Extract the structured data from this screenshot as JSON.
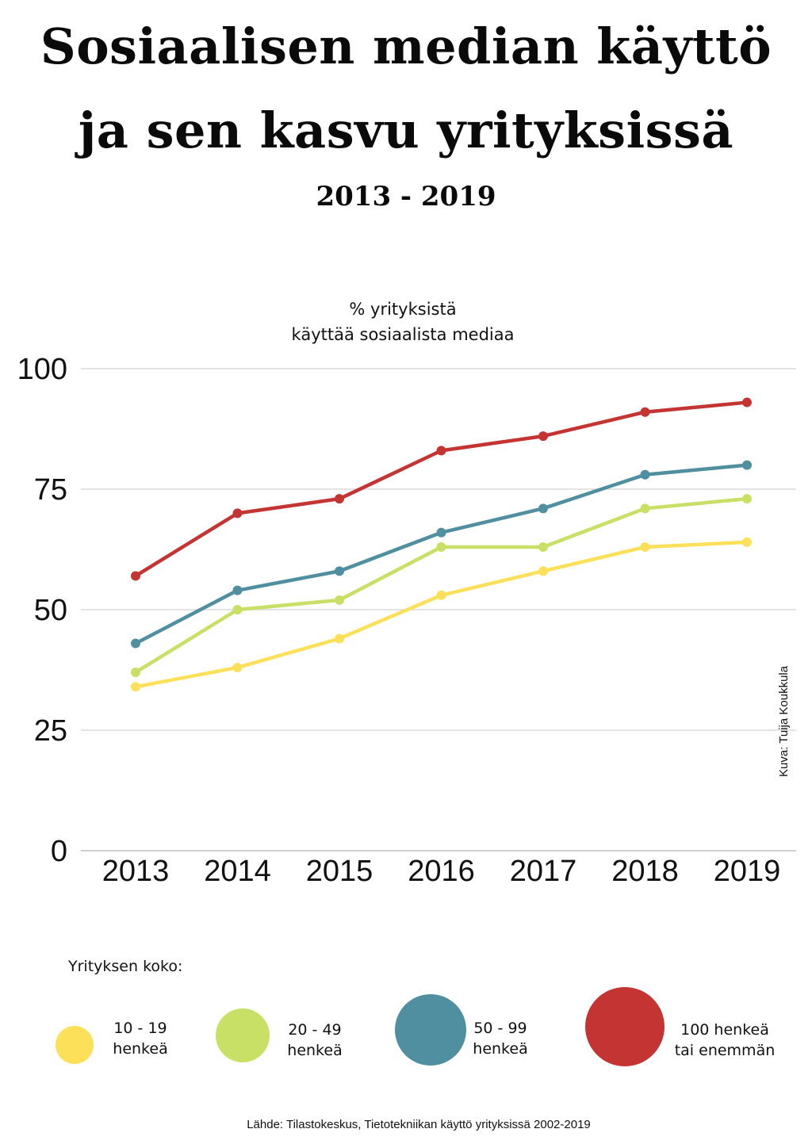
{
  "header": {
    "title_line1": "Sosiaalisen median käyttö",
    "title_line2": "ja sen kasvu yrityksissä",
    "subtitle": "2013 - 2019"
  },
  "chart_data": {
    "type": "line",
    "title": "Sosiaalisen median käyttö ja sen kasvu yrityksissä",
    "subtitle": "2013 - 2019",
    "ylabel_line1": "% yrityksistä",
    "ylabel_line2": "käyttää sosiaalista mediaa",
    "xlabel": "",
    "categories": [
      "2013",
      "2014",
      "2015",
      "2016",
      "2017",
      "2018",
      "2019"
    ],
    "ylim": [
      0,
      100
    ],
    "yticks": [
      0,
      25,
      50,
      75,
      100
    ],
    "grid": true,
    "series": [
      {
        "name": "10 - 19 henkeä",
        "color": "#fde05a",
        "values": [
          34,
          38,
          44,
          53,
          58,
          63,
          64
        ]
      },
      {
        "name": "20 - 49 henkeä",
        "color": "#c8e065",
        "values": [
          37,
          50,
          52,
          63,
          63,
          71,
          73
        ]
      },
      {
        "name": "50 - 99 henkeä",
        "color": "#4f8fa0",
        "values": [
          43,
          54,
          58,
          66,
          71,
          78,
          80
        ]
      },
      {
        "name": "100 henkeä tai enemmän",
        "color": "#c33432",
        "values": [
          57,
          70,
          73,
          83,
          86,
          91,
          93
        ]
      }
    ]
  },
  "credit": "Kuva: Tuija Koukkula",
  "legend": {
    "title": "Yrityksen koko:",
    "items": [
      {
        "line1": "10 - 19",
        "line2": "henkeä",
        "color": "#fde05a"
      },
      {
        "line1": "20 - 49",
        "line2": "henkeä",
        "color": "#c8e065"
      },
      {
        "line1": "50 - 99",
        "line2": "henkeä",
        "color": "#4f8fa0"
      },
      {
        "line1": "100 henkeä",
        "line2": "tai enemmän",
        "color": "#c33432"
      }
    ]
  },
  "source": "Lähde: Tilastokeskus, Tietotekniikan käyttö yrityksissä 2002-2019"
}
